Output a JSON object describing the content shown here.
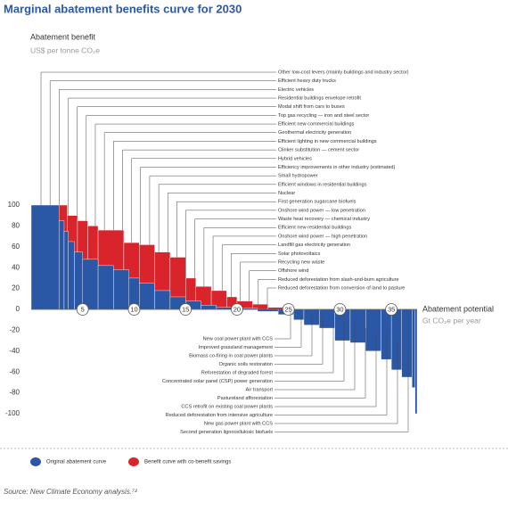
{
  "chart_data": {
    "type": "mac",
    "title": "Marginal abatement benefits curve for 2030",
    "y_label": "Abatement benefit",
    "y_unit": "US$ per tonne CO₂e",
    "x_label": "Abatement potential",
    "x_unit": "Gt CO₂e per year",
    "xlim": [
      0,
      37.5
    ],
    "xticks": [
      5,
      10,
      15,
      20,
      25,
      30,
      35
    ],
    "ylim": [
      -100,
      100
    ],
    "yticks": [
      100,
      80,
      60,
      40,
      20,
      0,
      -20,
      -40,
      -60,
      -80,
      -100
    ],
    "series": [
      {
        "name": "Benefit curve with co-benefit savings",
        "color": "#d9242b",
        "edges": [
          0,
          3.5,
          4.5,
          5.5,
          6.5,
          9,
          10.5,
          12,
          13.5,
          15,
          16,
          17.5,
          19,
          20,
          21.5,
          23,
          24.5,
          26,
          28,
          29.5,
          31,
          32,
          33.5,
          35,
          36,
          37,
          37.5
        ],
        "values": [
          100,
          90,
          85,
          80,
          76,
          64,
          62,
          55,
          50,
          30,
          22,
          18,
          12,
          8,
          5,
          2,
          -2,
          -5,
          -8,
          -10,
          -12,
          -18,
          -22,
          -30,
          -40,
          -50
        ]
      },
      {
        "name": "Original abatement curve",
        "color": "#2b58a6",
        "edges": [
          0,
          2.7,
          3.2,
          3.6,
          4.2,
          5,
          6.5,
          8,
          9.5,
          10.5,
          12,
          13.5,
          15,
          16.5,
          18,
          20,
          22,
          24,
          25.5,
          26.5,
          28,
          29.5,
          31,
          32.5,
          34,
          35,
          36,
          37,
          37.3,
          37.5
        ],
        "values": [
          100,
          85,
          75,
          65,
          55,
          48,
          42,
          38,
          30,
          25,
          18,
          12,
          8,
          4,
          2,
          1,
          -2,
          -5,
          -10,
          -15,
          -18,
          -30,
          -32,
          -40,
          -48,
          -58,
          -65,
          -75,
          -100
        ]
      }
    ],
    "annotations": {
      "above": [
        "Other low-cost levers (mainly buildings and industry sector)",
        "Efficient heavy duty trucks",
        "Electric vehicles",
        "Residential buildings envelope retrofit",
        "Modal shift from cars to buses",
        "Top gas recycling — iron and steel sector",
        "Efficient new commercial buildings",
        "Geothermal electricity generation",
        "Efficient lighting in new commercial buildings",
        "Clinker substitution — cement sector",
        "Hybrid vehicles",
        "Efficiency improvements in other industry (estimated)",
        "Small hydropower",
        "Efficient windows in residential buildings",
        "Nuclear",
        "First generation sugarcane biofuels",
        "Onshore wind power — low penetration",
        "Waste heat recovery — chemical industry",
        "Efficient new residential buildings",
        "Onshore wind power — high penetration",
        "Landfill gas electricity  generation",
        "Solar photovoltaics",
        "Recycling new waste",
        "Offshore wind",
        "Reduced deforestation from slash-and-burn agriculture",
        "Reduced deforestation from conversion of land to pasture"
      ],
      "below": [
        "New coal power plant with CCS",
        "Improved grassland management",
        "Biomass co-firing in coal power plants",
        "Organic soils restoration",
        "Reforestation of degraded forest",
        "Concentrated solar panel (CSP) power generation",
        "Air transport",
        "Pastureland afforestation",
        "CCS retrofit on existing coal power plants",
        "Reduced deforestation from intensive agriculture",
        "New gas power plant with CCS",
        "Second generation lignocellulosic biofuels"
      ]
    },
    "source": "Source: New Climate Economy analysis.⁷²"
  }
}
